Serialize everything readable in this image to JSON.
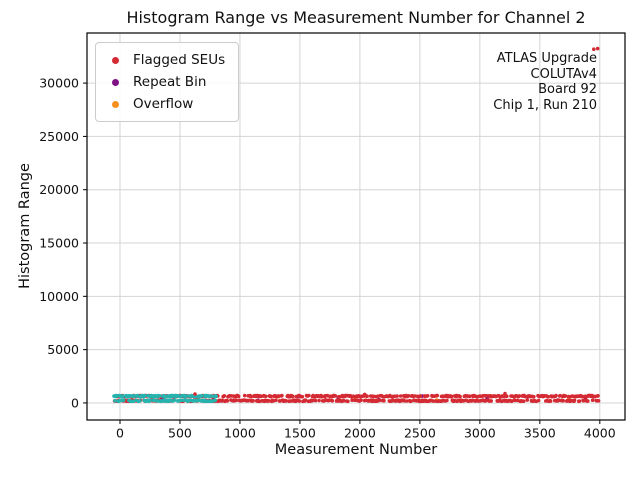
{
  "chart_data": {
    "type": "scatter",
    "title": "Histogram Range vs Measurement Number for Channel 2",
    "xlabel": "Measurement Number",
    "ylabel": "Histogram Range",
    "xlim": [
      -275,
      4210
    ],
    "ylim": [
      -1600,
      34700
    ],
    "xticks": [
      0,
      500,
      1000,
      1500,
      2000,
      2500,
      3000,
      3500,
      4000
    ],
    "yticks": [
      0,
      5000,
      10000,
      15000,
      20000,
      25000,
      30000
    ],
    "grid": true,
    "grid_color": "#d4d4d4",
    "spine_color": "#000000",
    "legend_position": "upper left",
    "legend": [
      {
        "label": "Flagged SEUs",
        "color": "#d42a34"
      },
      {
        "label": "Repeat Bin",
        "color": "#7e1083"
      },
      {
        "label": "Overflow",
        "color": "#f78f1e"
      }
    ],
    "annotation_lines": [
      "ATLAS Upgrade",
      "COLUTAv4",
      "Board 92",
      "Chip 1, Run 210"
    ],
    "series": [
      {
        "name": "Repeat Bin",
        "color": "#7e1083",
        "points": [
          [
            350,
            420
          ],
          [
            780,
            560
          ],
          [
            1150,
            250
          ],
          [
            1480,
            610
          ],
          [
            1820,
            520
          ],
          [
            2160,
            300
          ],
          [
            2520,
            640
          ],
          [
            2780,
            230
          ],
          [
            3060,
            430
          ],
          [
            3400,
            590
          ],
          [
            3650,
            270
          ],
          [
            3880,
            500
          ]
        ]
      },
      {
        "name": "Overflow",
        "color": "#f78f1e",
        "points": [
          [
            560,
            240
          ],
          [
            1320,
            590
          ],
          [
            1960,
            430
          ],
          [
            2640,
            270
          ],
          [
            3180,
            620
          ],
          [
            3740,
            350
          ]
        ]
      },
      {
        "name": "Flagged SEUs (dense baseline band, values ~150-700)",
        "color": "#d42a34",
        "band": {
          "x_start": -50,
          "x_end": 3990,
          "step": 5,
          "coverage": 0.92,
          "y_clusters": [
            [
              580,
              700
            ],
            [
              150,
              270
            ]
          ]
        }
      },
      {
        "name": "Unlabeled baseline measurements (cyan band, values ~150-700)",
        "color": "#26b3ae",
        "band": {
          "x_start": -50,
          "x_end": 805,
          "step": 4,
          "coverage": 0.8,
          "y_clusters": [
            [
              580,
              700
            ],
            [
              150,
              270
            ]
          ]
        }
      },
      {
        "name": "Flagged SEUs (outliers)",
        "color": "#d42a34",
        "points": [
          [
            625,
            840
          ],
          [
            2040,
            800
          ],
          [
            3210,
            890
          ],
          [
            3835,
            620
          ],
          [
            3950,
            33180
          ],
          [
            3982,
            33240
          ]
        ]
      }
    ]
  }
}
